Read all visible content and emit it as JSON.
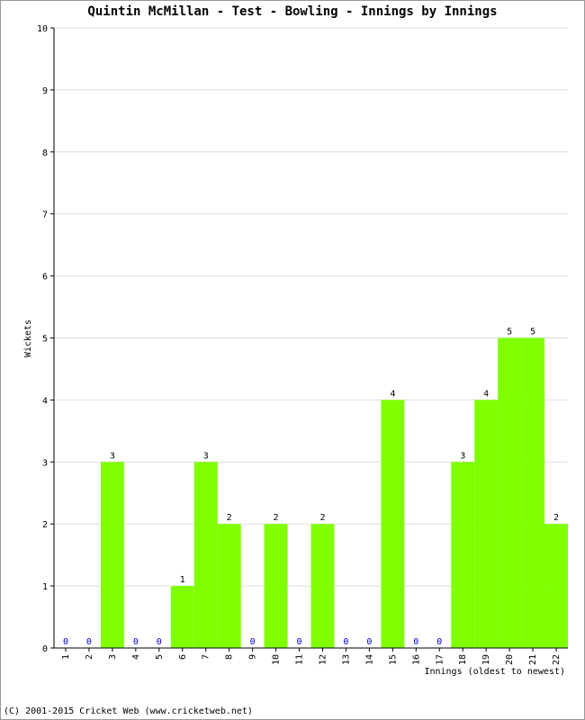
{
  "chart_data": {
    "type": "bar",
    "title": "Quintin McMillan - Test - Bowling - Innings by Innings",
    "xlabel": "Innings (oldest to newest)",
    "ylabel": "Wickets",
    "ylim": [
      0,
      10
    ],
    "yticks": [
      "0",
      "1",
      "2",
      "3",
      "4",
      "5",
      "6",
      "7",
      "8",
      "9",
      "10"
    ],
    "categories": [
      "1",
      "2",
      "3",
      "4",
      "5",
      "6",
      "7",
      "8",
      "9",
      "10",
      "11",
      "12",
      "13",
      "14",
      "15",
      "16",
      "17",
      "18",
      "19",
      "20",
      "21",
      "22"
    ],
    "values": [
      0,
      0,
      3,
      0,
      0,
      1,
      3,
      2,
      0,
      2,
      0,
      2,
      0,
      0,
      4,
      0,
      0,
      3,
      4,
      5,
      5,
      2
    ],
    "bar_color": "#80ff00",
    "zero_label_color": "#0000cc",
    "grid": true
  },
  "footer": "(C) 2001-2015 Cricket Web (www.cricketweb.net)"
}
